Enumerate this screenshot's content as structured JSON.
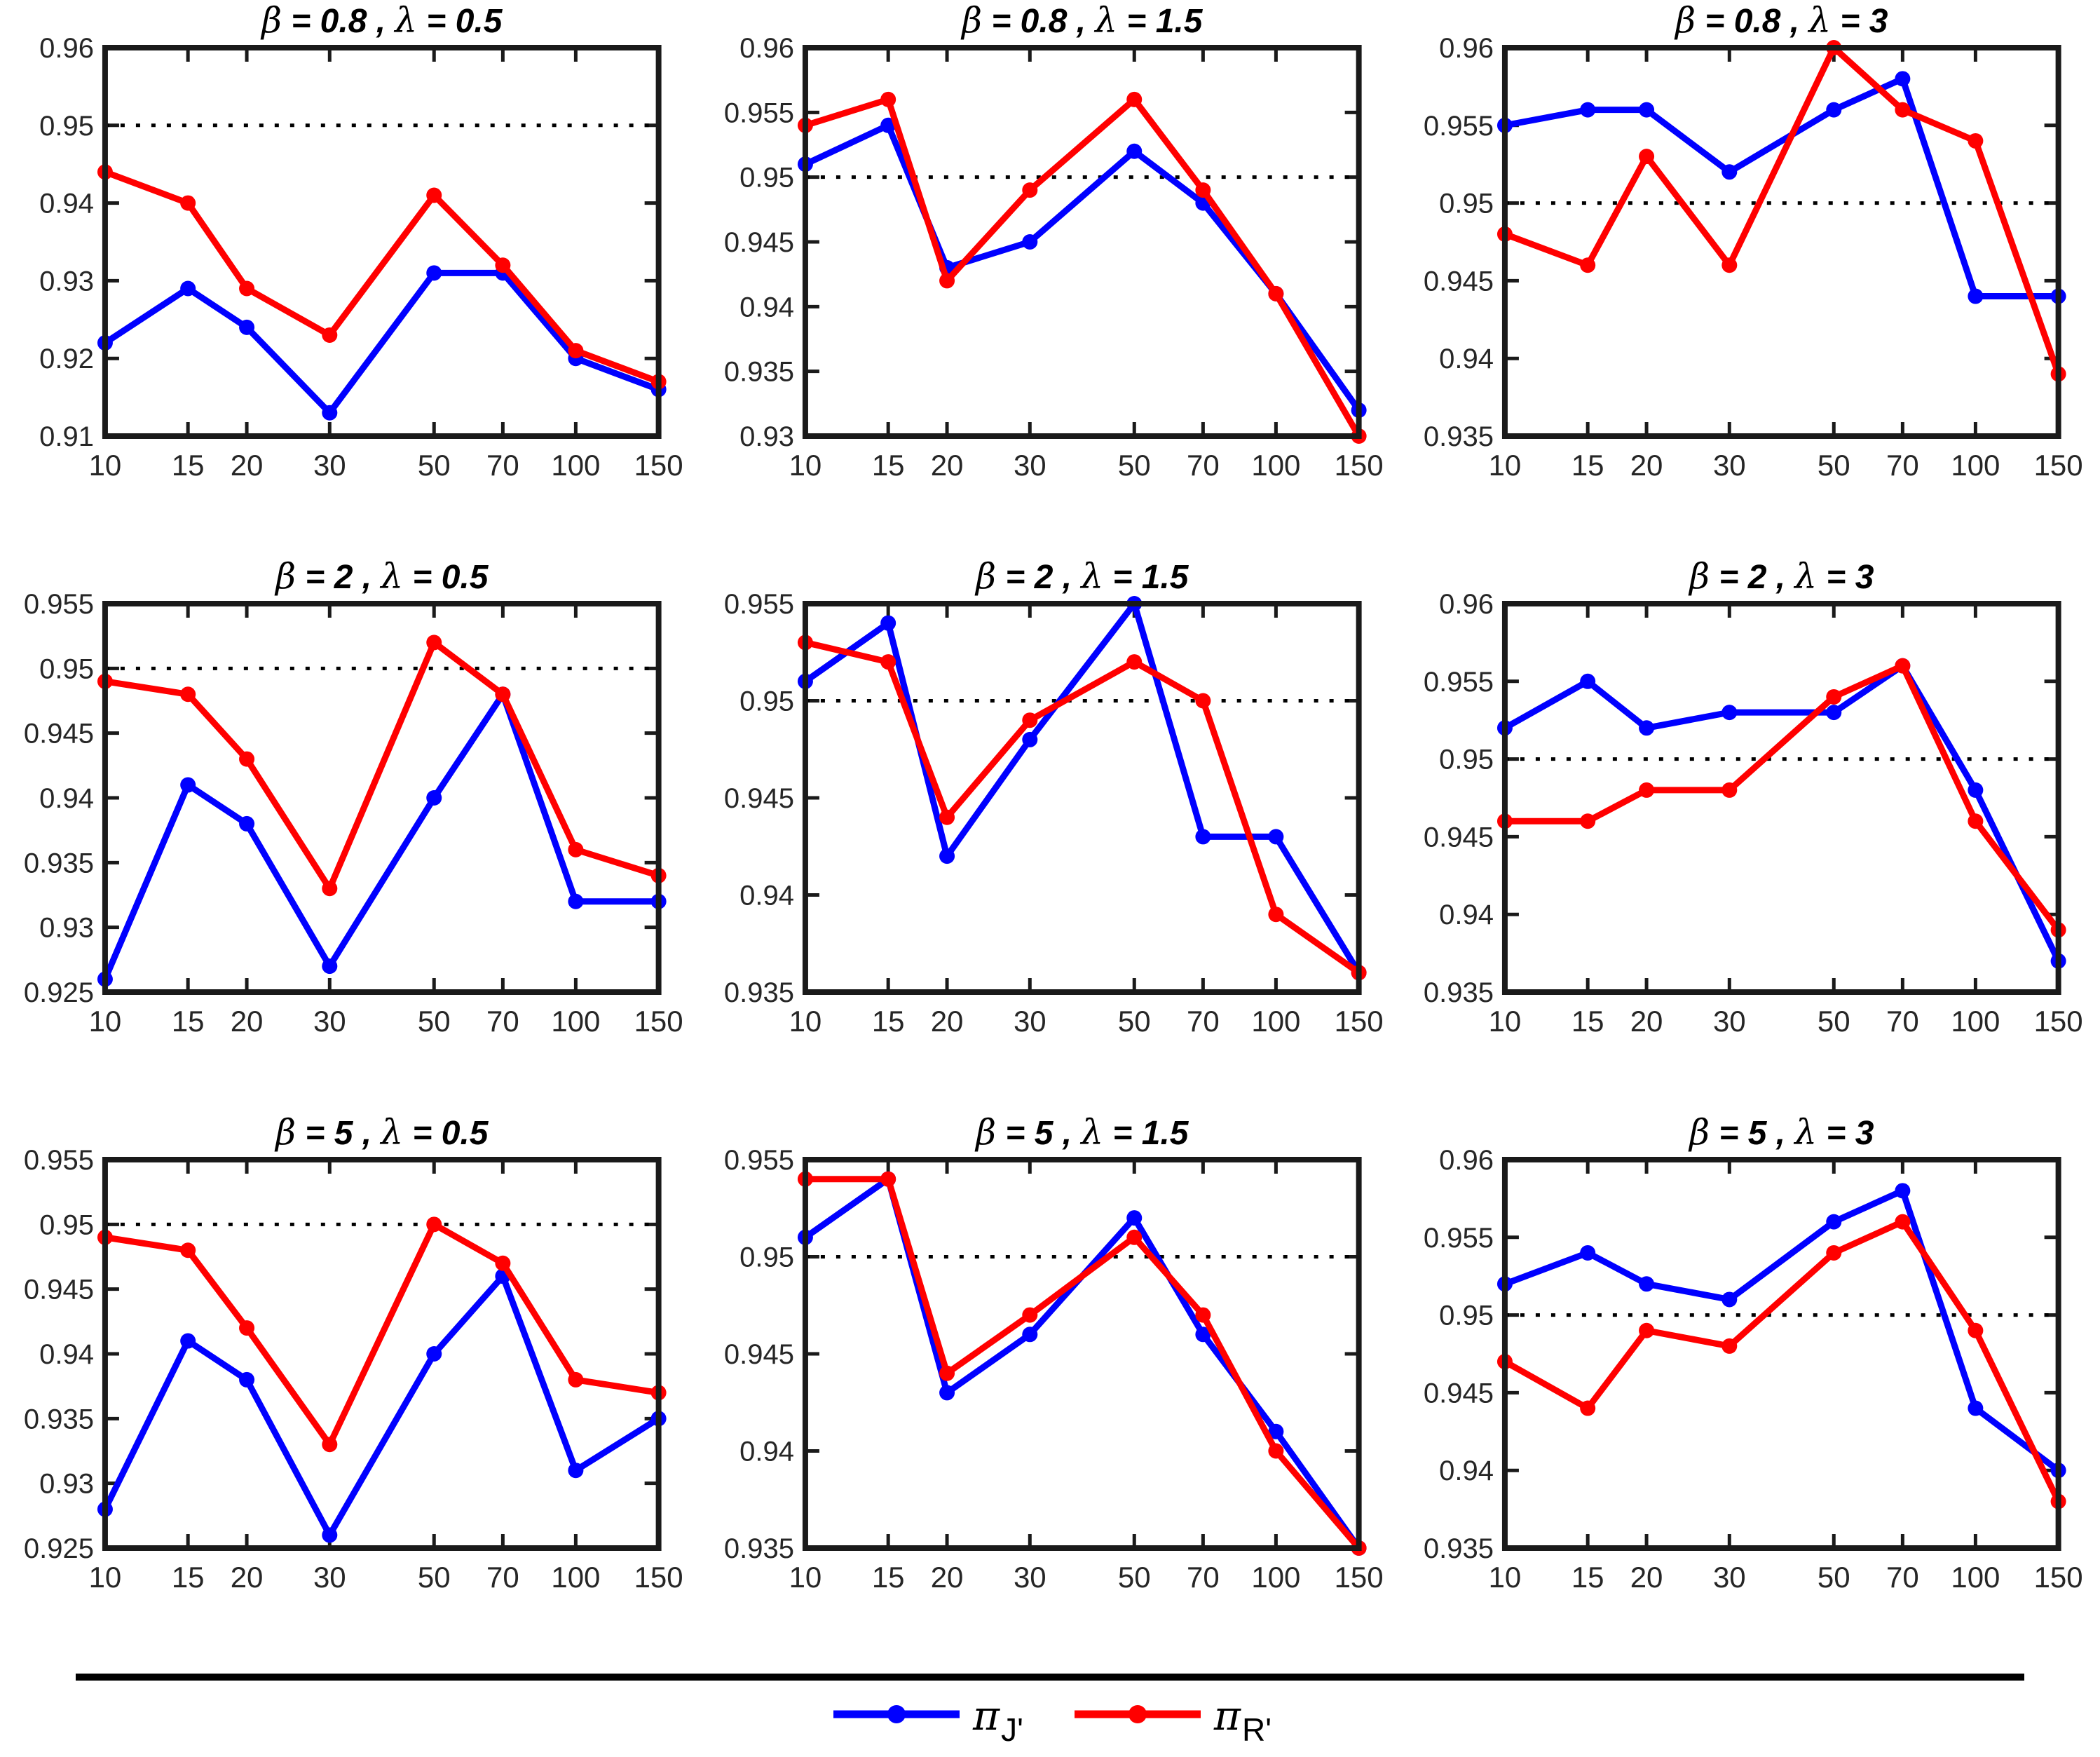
{
  "page": {
    "background": "#ffffff",
    "kind": "matlab-style figure, 3x3 grid of coverage-probability line plots"
  },
  "colors": {
    "series_J": "#0000ff",
    "series_R": "#ff0000",
    "axis_box": "#1a1a1a",
    "tick_label": "#262626",
    "reference_line": "#000000",
    "separator": "#000000"
  },
  "symbols": {
    "beta": "β",
    "lambda": "λ",
    "pi": "π"
  },
  "legend": {
    "items": [
      {
        "name": "pi_J",
        "symbol": "π",
        "subscript": "J'",
        "color": "#0000ff"
      },
      {
        "name": "pi_R",
        "symbol": "π",
        "subscript": "R'",
        "color": "#ff0000"
      }
    ]
  },
  "chart_data": [
    {
      "type": "line",
      "title": "β = 0.8 , λ = 0.5",
      "beta": "0.8",
      "lambda": "0.5",
      "x_scale": "log",
      "categories": [
        10,
        15,
        20,
        30,
        50,
        70,
        100,
        150
      ],
      "xtick_labels": [
        "10",
        "15",
        "20",
        "30",
        "50",
        "70",
        "100",
        "150"
      ],
      "ylim": [
        0.91,
        0.96
      ],
      "yticks": [
        0.91,
        0.92,
        0.93,
        0.94,
        0.95,
        0.96
      ],
      "ytick_labels": [
        "0.91",
        "0.92",
        "0.93",
        "0.94",
        "0.95",
        "0.96"
      ],
      "ref_line": 0.95,
      "series": [
        {
          "name": "pi_J",
          "color": "#0000ff",
          "values": [
            0.922,
            0.929,
            0.924,
            0.913,
            0.931,
            0.931,
            0.92,
            0.916
          ]
        },
        {
          "name": "pi_R",
          "color": "#ff0000",
          "values": [
            0.944,
            0.94,
            0.929,
            0.923,
            0.941,
            0.932,
            0.921,
            0.917
          ]
        }
      ]
    },
    {
      "type": "line",
      "title": "β = 0.8 , λ = 1.5",
      "beta": "0.8",
      "lambda": "1.5",
      "x_scale": "log",
      "categories": [
        10,
        15,
        20,
        30,
        50,
        70,
        100,
        150
      ],
      "xtick_labels": [
        "10",
        "15",
        "20",
        "30",
        "50",
        "70",
        "100",
        "150"
      ],
      "ylim": [
        0.93,
        0.96
      ],
      "yticks": [
        0.93,
        0.935,
        0.94,
        0.945,
        0.95,
        0.955,
        0.96
      ],
      "ytick_labels": [
        "0.93",
        "0.935",
        "0.94",
        "0.945",
        "0.95",
        "0.955",
        "0.96"
      ],
      "ref_line": 0.95,
      "series": [
        {
          "name": "pi_J",
          "color": "#0000ff",
          "values": [
            0.951,
            0.954,
            0.943,
            0.945,
            0.952,
            0.948,
            0.941,
            0.932
          ]
        },
        {
          "name": "pi_R",
          "color": "#ff0000",
          "values": [
            0.954,
            0.956,
            0.942,
            0.949,
            0.956,
            0.949,
            0.941,
            0.93
          ]
        }
      ]
    },
    {
      "type": "line",
      "title": "β = 0.8 , λ = 3",
      "beta": "0.8",
      "lambda": "3",
      "x_scale": "log",
      "categories": [
        10,
        15,
        20,
        30,
        50,
        70,
        100,
        150
      ],
      "xtick_labels": [
        "10",
        "15",
        "20",
        "30",
        "50",
        "70",
        "100",
        "150"
      ],
      "ylim": [
        0.935,
        0.96
      ],
      "yticks": [
        0.935,
        0.94,
        0.945,
        0.95,
        0.955,
        0.96
      ],
      "ytick_labels": [
        "0.935",
        "0.94",
        "0.945",
        "0.95",
        "0.955",
        "0.96"
      ],
      "ref_line": 0.95,
      "series": [
        {
          "name": "pi_J",
          "color": "#0000ff",
          "values": [
            0.955,
            0.956,
            0.956,
            0.952,
            0.956,
            0.958,
            0.944,
            0.944
          ]
        },
        {
          "name": "pi_R",
          "color": "#ff0000",
          "values": [
            0.948,
            0.946,
            0.953,
            0.946,
            0.96,
            0.956,
            0.954,
            0.939
          ]
        }
      ]
    },
    {
      "type": "line",
      "title": "β = 2 , λ = 0.5",
      "beta": "2",
      "lambda": "0.5",
      "x_scale": "log",
      "categories": [
        10,
        15,
        20,
        30,
        50,
        70,
        100,
        150
      ],
      "xtick_labels": [
        "10",
        "15",
        "20",
        "30",
        "50",
        "70",
        "100",
        "150"
      ],
      "ylim": [
        0.925,
        0.955
      ],
      "yticks": [
        0.925,
        0.93,
        0.935,
        0.94,
        0.945,
        0.95,
        0.955
      ],
      "ytick_labels": [
        "0.925",
        "0.93",
        "0.935",
        "0.94",
        "0.945",
        "0.95",
        "0.955"
      ],
      "ref_line": 0.95,
      "series": [
        {
          "name": "pi_J",
          "color": "#0000ff",
          "values": [
            0.926,
            0.941,
            0.938,
            0.927,
            0.94,
            0.948,
            0.932,
            0.932
          ]
        },
        {
          "name": "pi_R",
          "color": "#ff0000",
          "values": [
            0.949,
            0.948,
            0.943,
            0.933,
            0.952,
            0.948,
            0.936,
            0.934
          ]
        }
      ]
    },
    {
      "type": "line",
      "title": "β = 2 , λ = 1.5",
      "beta": "2",
      "lambda": "1.5",
      "x_scale": "log",
      "categories": [
        10,
        15,
        20,
        30,
        50,
        70,
        100,
        150
      ],
      "xtick_labels": [
        "10",
        "15",
        "20",
        "30",
        "50",
        "70",
        "100",
        "150"
      ],
      "ylim": [
        0.935,
        0.955
      ],
      "yticks": [
        0.935,
        0.94,
        0.945,
        0.95,
        0.955
      ],
      "ytick_labels": [
        "0.935",
        "0.94",
        "0.945",
        "0.95",
        "0.955"
      ],
      "ref_line": 0.95,
      "series": [
        {
          "name": "pi_J",
          "color": "#0000ff",
          "values": [
            0.951,
            0.954,
            0.942,
            0.948,
            0.955,
            0.943,
            0.943,
            0.936
          ]
        },
        {
          "name": "pi_R",
          "color": "#ff0000",
          "values": [
            0.953,
            0.952,
            0.944,
            0.949,
            0.952,
            0.95,
            0.939,
            0.936
          ]
        }
      ]
    },
    {
      "type": "line",
      "title": "β = 2 , λ = 3",
      "beta": "2",
      "lambda": "3",
      "x_scale": "log",
      "categories": [
        10,
        15,
        20,
        30,
        50,
        70,
        100,
        150
      ],
      "xtick_labels": [
        "10",
        "15",
        "20",
        "30",
        "50",
        "70",
        "100",
        "150"
      ],
      "ylim": [
        0.935,
        0.96
      ],
      "yticks": [
        0.935,
        0.94,
        0.945,
        0.95,
        0.955,
        0.96
      ],
      "ytick_labels": [
        "0.935",
        "0.94",
        "0.945",
        "0.95",
        "0.955",
        "0.96"
      ],
      "ref_line": 0.95,
      "series": [
        {
          "name": "pi_J",
          "color": "#0000ff",
          "values": [
            0.952,
            0.955,
            0.952,
            0.953,
            0.953,
            0.956,
            0.948,
            0.937
          ]
        },
        {
          "name": "pi_R",
          "color": "#ff0000",
          "values": [
            0.946,
            0.946,
            0.948,
            0.948,
            0.954,
            0.956,
            0.946,
            0.939
          ]
        }
      ]
    },
    {
      "type": "line",
      "title": "β = 5 , λ = 0.5",
      "beta": "5",
      "lambda": "0.5",
      "x_scale": "log",
      "categories": [
        10,
        15,
        20,
        30,
        50,
        70,
        100,
        150
      ],
      "xtick_labels": [
        "10",
        "15",
        "20",
        "30",
        "50",
        "70",
        "100",
        "150"
      ],
      "ylim": [
        0.925,
        0.955
      ],
      "yticks": [
        0.925,
        0.93,
        0.935,
        0.94,
        0.945,
        0.95,
        0.955
      ],
      "ytick_labels": [
        "0.925",
        "0.93",
        "0.935",
        "0.94",
        "0.945",
        "0.95",
        "0.955"
      ],
      "ref_line": 0.95,
      "series": [
        {
          "name": "pi_J",
          "color": "#0000ff",
          "values": [
            0.928,
            0.941,
            0.938,
            0.926,
            0.94,
            0.946,
            0.931,
            0.935
          ]
        },
        {
          "name": "pi_R",
          "color": "#ff0000",
          "values": [
            0.949,
            0.948,
            0.942,
            0.933,
            0.95,
            0.947,
            0.938,
            0.937
          ]
        }
      ]
    },
    {
      "type": "line",
      "title": "β = 5 , λ = 1.5",
      "beta": "5",
      "lambda": "1.5",
      "x_scale": "log",
      "categories": [
        10,
        15,
        20,
        30,
        50,
        70,
        100,
        150
      ],
      "xtick_labels": [
        "10",
        "15",
        "20",
        "30",
        "50",
        "70",
        "100",
        "150"
      ],
      "ylim": [
        0.935,
        0.955
      ],
      "yticks": [
        0.935,
        0.94,
        0.945,
        0.95,
        0.955
      ],
      "ytick_labels": [
        "0.935",
        "0.94",
        "0.945",
        "0.95",
        "0.955"
      ],
      "ref_line": 0.95,
      "series": [
        {
          "name": "pi_J",
          "color": "#0000ff",
          "values": [
            0.951,
            0.954,
            0.943,
            0.946,
            0.952,
            0.946,
            0.941,
            0.935
          ]
        },
        {
          "name": "pi_R",
          "color": "#ff0000",
          "values": [
            0.954,
            0.954,
            0.944,
            0.947,
            0.951,
            0.947,
            0.94,
            0.935
          ]
        }
      ]
    },
    {
      "type": "line",
      "title": "β = 5 , λ = 3",
      "beta": "5",
      "lambda": "3",
      "x_scale": "log",
      "categories": [
        10,
        15,
        20,
        30,
        50,
        70,
        100,
        150
      ],
      "xtick_labels": [
        "10",
        "15",
        "20",
        "30",
        "50",
        "70",
        "100",
        "150"
      ],
      "ylim": [
        0.935,
        0.96
      ],
      "yticks": [
        0.935,
        0.94,
        0.945,
        0.95,
        0.955,
        0.96
      ],
      "ytick_labels": [
        "0.935",
        "0.94",
        "0.945",
        "0.95",
        "0.955",
        "0.96"
      ],
      "ref_line": 0.95,
      "series": [
        {
          "name": "pi_J",
          "color": "#0000ff",
          "values": [
            0.952,
            0.954,
            0.952,
            0.951,
            0.956,
            0.958,
            0.944,
            0.94
          ]
        },
        {
          "name": "pi_R",
          "color": "#ff0000",
          "values": [
            0.947,
            0.944,
            0.949,
            0.948,
            0.954,
            0.956,
            0.949,
            0.938
          ]
        }
      ]
    }
  ]
}
